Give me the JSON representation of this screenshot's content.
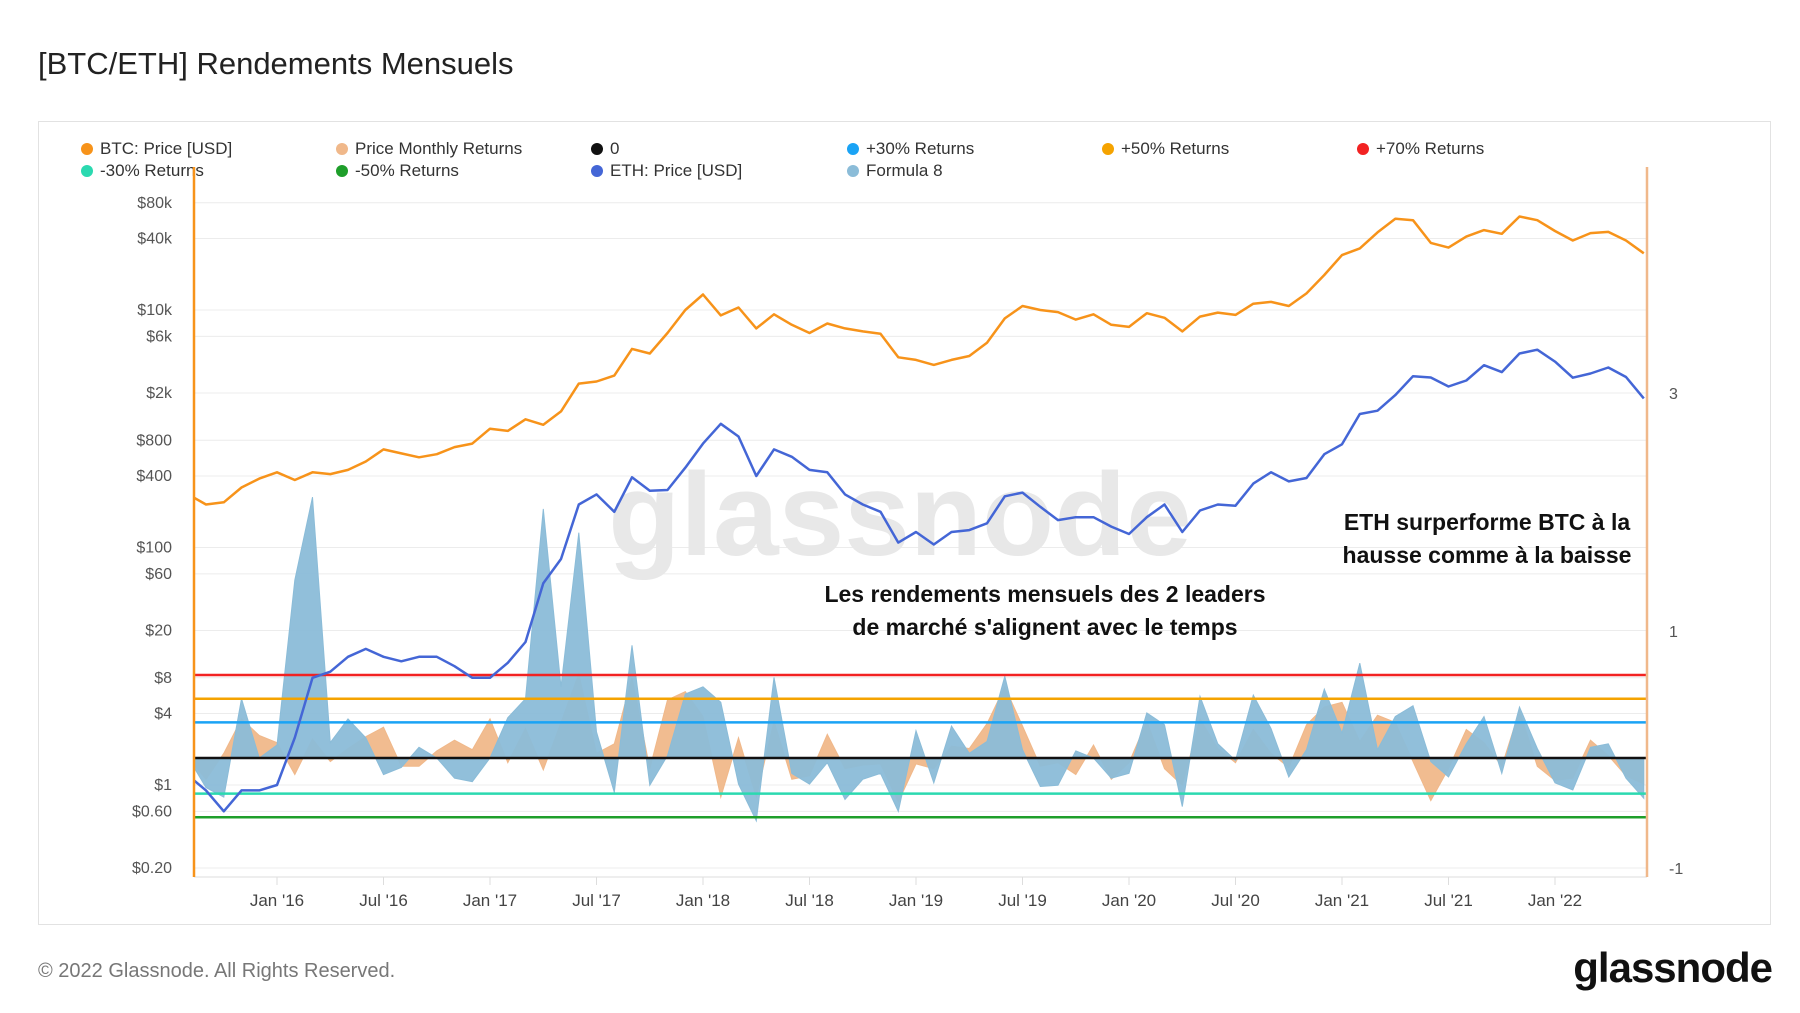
{
  "title": "[BTC/ETH] Rendements Mensuels",
  "footer": "© 2022 Glassnode. All Rights Reserved.",
  "logo": "glassnode",
  "watermark": "glassnode",
  "legend": [
    {
      "label": "BTC: Price [USD]",
      "color": "#f7931a"
    },
    {
      "label": "Price Monthly Returns",
      "color": "#f0b88a"
    },
    {
      "label": "0",
      "color": "#111111"
    },
    {
      "label": "+30% Returns",
      "color": "#1aa3f5"
    },
    {
      "label": "+50% Returns",
      "color": "#f5a300"
    },
    {
      "label": "+70% Returns",
      "color": "#f22222"
    },
    {
      "label": "-30% Returns",
      "color": "#2bd9b0"
    },
    {
      "label": "-50% Returns",
      "color": "#1e9e2a"
    },
    {
      "label": "ETH: Price [USD]",
      "color": "#4466d6"
    },
    {
      "label": "Formula 8",
      "color": "#8bbcd8"
    }
  ],
  "annotations": [
    {
      "lines": [
        "ETH surperforme BTC à la",
        "hausse comme à la baisse"
      ]
    },
    {
      "lines": [
        "Les rendements mensuels des 2 leaders",
        "de marché s'alignent avec le temps"
      ]
    }
  ],
  "chart_data": {
    "type": "line",
    "title": "[BTC/ETH] Rendements Mensuels",
    "grid": true,
    "legend_position": "top",
    "left_axis": {
      "scale": "log",
      "range": [
        0.2,
        80000
      ],
      "ticks": [
        80000,
        40000,
        10000,
        6000,
        2000,
        800,
        400,
        100,
        60,
        20,
        8,
        4,
        1,
        0.6,
        0.2
      ],
      "tick_labels": [
        "$80k",
        "$40k",
        "$10k",
        "$6k",
        "$2k",
        "$800",
        "$400",
        "$100",
        "$60",
        "$20",
        "$8",
        "$4",
        "$1",
        "$0.60",
        "$0.20"
      ]
    },
    "right_axis": {
      "scale": "linear",
      "ticks": [
        3,
        1,
        -1
      ],
      "tick_labels": [
        "3",
        "1",
        "-1"
      ]
    },
    "x_ticks": [
      "2016-01",
      "2016-07",
      "2017-01",
      "2017-07",
      "2018-01",
      "2018-07",
      "2019-01",
      "2019-07",
      "2020-01",
      "2020-07",
      "2021-01",
      "2021-07",
      "2022-01"
    ],
    "x_tick_labels": [
      "Jan '16",
      "Jul '16",
      "Jan '17",
      "Jul '17",
      "Jan '18",
      "Jul '18",
      "Jan '19",
      "Jul '19",
      "Jan '20",
      "Jul '20",
      "Jan '21",
      "Jul '21",
      "Jan '22"
    ],
    "dates": [
      "2015-08",
      "2015-09",
      "2015-10",
      "2015-11",
      "2015-12",
      "2016-01",
      "2016-02",
      "2016-03",
      "2016-04",
      "2016-05",
      "2016-06",
      "2016-07",
      "2016-08",
      "2016-09",
      "2016-10",
      "2016-11",
      "2016-12",
      "2017-01",
      "2017-02",
      "2017-03",
      "2017-04",
      "2017-05",
      "2017-06",
      "2017-07",
      "2017-08",
      "2017-09",
      "2017-10",
      "2017-11",
      "2017-12",
      "2018-01",
      "2018-02",
      "2018-03",
      "2018-04",
      "2018-05",
      "2018-06",
      "2018-07",
      "2018-08",
      "2018-09",
      "2018-10",
      "2018-11",
      "2018-12",
      "2019-01",
      "2019-02",
      "2019-03",
      "2019-04",
      "2019-05",
      "2019-06",
      "2019-07",
      "2019-08",
      "2019-09",
      "2019-10",
      "2019-11",
      "2019-12",
      "2020-01",
      "2020-02",
      "2020-03",
      "2020-04",
      "2020-05",
      "2020-06",
      "2020-07",
      "2020-08",
      "2020-09",
      "2020-10",
      "2020-11",
      "2020-12",
      "2021-01",
      "2021-02",
      "2021-03",
      "2021-04",
      "2021-05",
      "2021-06",
      "2021-07",
      "2021-08",
      "2021-09",
      "2021-10",
      "2021-11",
      "2021-12",
      "2022-01",
      "2022-02",
      "2022-03",
      "2022-04",
      "2022-05",
      "2022-06"
    ],
    "series": [
      {
        "name": "BTC: Price [USD]",
        "axis": "left",
        "kind": "line",
        "color": "#f7931a",
        "values": [
          280,
          230,
          240,
          320,
          380,
          430,
          370,
          430,
          415,
          450,
          530,
          670,
          620,
          575,
          610,
          700,
          750,
          1000,
          960,
          1200,
          1080,
          1400,
          2400,
          2500,
          2800,
          4700,
          4300,
          6400,
          10000,
          13500,
          9000,
          10500,
          7000,
          9200,
          7500,
          6400,
          7700,
          7000,
          6600,
          6300,
          4000,
          3800,
          3450,
          3800,
          4100,
          5300,
          8500,
          10800,
          10000,
          9600,
          8300,
          9200,
          7500,
          7200,
          9400,
          8600,
          6600,
          8800,
          9500,
          9100,
          11300,
          11700,
          10800,
          13800,
          19700,
          29000,
          33000,
          45000,
          58700,
          57000,
          36700,
          33500,
          41500,
          47100,
          43800,
          61300,
          57000,
          46300,
          38500,
          44400,
          45500,
          38500,
          30000
        ]
      },
      {
        "name": "ETH: Price [USD]",
        "axis": "left",
        "kind": "line",
        "color": "#4466d6",
        "values": [
          1.2,
          0.9,
          0.6,
          0.9,
          0.9,
          1.0,
          2.5,
          8,
          9,
          12,
          14,
          12,
          11,
          12,
          12,
          10,
          8,
          8,
          10.7,
          16,
          50,
          80,
          230,
          280,
          200,
          390,
          300,
          305,
          470,
          750,
          1100,
          860,
          400,
          670,
          580,
          450,
          430,
          280,
          230,
          200,
          110,
          135,
          106,
          135,
          140,
          160,
          270,
          290,
          220,
          170,
          180,
          180,
          150,
          130,
          180,
          230,
          135,
          205,
          230,
          225,
          345,
          430,
          360,
          385,
          610,
          740,
          1330,
          1420,
          1920,
          2770,
          2700,
          2270,
          2550,
          3430,
          3000,
          4300,
          4630,
          3680,
          2690,
          2920,
          3280,
          2730,
          1800
        ]
      },
      {
        "name": "Price Monthly Returns",
        "axis": "right",
        "kind": "area",
        "color": "#f0b88a",
        "values": [
          0,
          -0.18,
          0.04,
          0.33,
          0.19,
          0.13,
          -0.14,
          0.16,
          -0.03,
          0.08,
          0.18,
          0.26,
          -0.07,
          -0.07,
          0.06,
          0.15,
          0.07,
          0.33,
          -0.04,
          0.25,
          -0.1,
          0.3,
          0.71,
          0.04,
          0.12,
          0.68,
          -0.09,
          0.49,
          0.56,
          0.35,
          -0.33,
          0.17,
          -0.33,
          0.31,
          -0.18,
          -0.15,
          0.2,
          -0.09,
          -0.06,
          -0.05,
          -0.37,
          -0.05,
          -0.09,
          0.1,
          0.08,
          0.29,
          0.6,
          0.27,
          -0.07,
          -0.04,
          -0.14,
          0.11,
          -0.18,
          -0.04,
          0.31,
          -0.09,
          -0.23,
          0.33,
          0.08,
          -0.04,
          0.24,
          0.04,
          -0.08,
          0.28,
          0.43,
          0.47,
          0.14,
          0.36,
          0.3,
          -0.03,
          -0.36,
          -0.09,
          0.24,
          0.13,
          -0.07,
          0.4,
          -0.07,
          -0.19,
          -0.17,
          0.15,
          0.02,
          -0.15,
          -0.22
        ]
      },
      {
        "name": "Formula 8",
        "axis": "right",
        "kind": "area",
        "color": "#8bbcd8",
        "values": [
          0,
          -0.25,
          -0.33,
          0.5,
          0,
          0.11,
          1.5,
          2.2,
          0.13,
          0.33,
          0.17,
          -0.14,
          -0.08,
          0.09,
          0,
          -0.17,
          -0.2,
          0,
          0.34,
          0.5,
          2.1,
          0.6,
          1.9,
          0.22,
          -0.29,
          0.95,
          -0.23,
          0.02,
          0.54,
          0.6,
          0.47,
          -0.22,
          -0.53,
          0.68,
          -0.13,
          -0.22,
          -0.04,
          -0.35,
          -0.18,
          -0.13,
          -0.45,
          0.23,
          -0.21,
          0.27,
          0.04,
          0.14,
          0.69,
          0.07,
          -0.24,
          -0.23,
          0.06,
          0,
          -0.17,
          -0.13,
          0.38,
          0.28,
          -0.41,
          0.52,
          0.12,
          -0.02,
          0.53,
          0.25,
          -0.16,
          0.07,
          0.58,
          0.21,
          0.8,
          0.07,
          0.35,
          0.44,
          -0.03,
          -0.16,
          0.12,
          0.35,
          -0.13,
          0.43,
          0.08,
          -0.21,
          -0.27,
          0.09,
          0.12,
          -0.17,
          -0.34
        ]
      }
    ],
    "reference_lines": [
      {
        "name": "0",
        "axis": "right",
        "value": 0,
        "color": "#111111"
      },
      {
        "name": "+30% Returns",
        "axis": "right",
        "value": 0.3,
        "color": "#1aa3f5"
      },
      {
        "name": "+50% Returns",
        "axis": "right",
        "value": 0.5,
        "color": "#f5a300"
      },
      {
        "name": "+70% Returns",
        "axis": "right",
        "value": 0.7,
        "color": "#f22222"
      },
      {
        "name": "-30% Returns",
        "axis": "right",
        "value": -0.3,
        "color": "#2bd9b0"
      },
      {
        "name": "-50% Returns",
        "axis": "right",
        "value": -0.5,
        "color": "#1e9e2a"
      }
    ]
  }
}
